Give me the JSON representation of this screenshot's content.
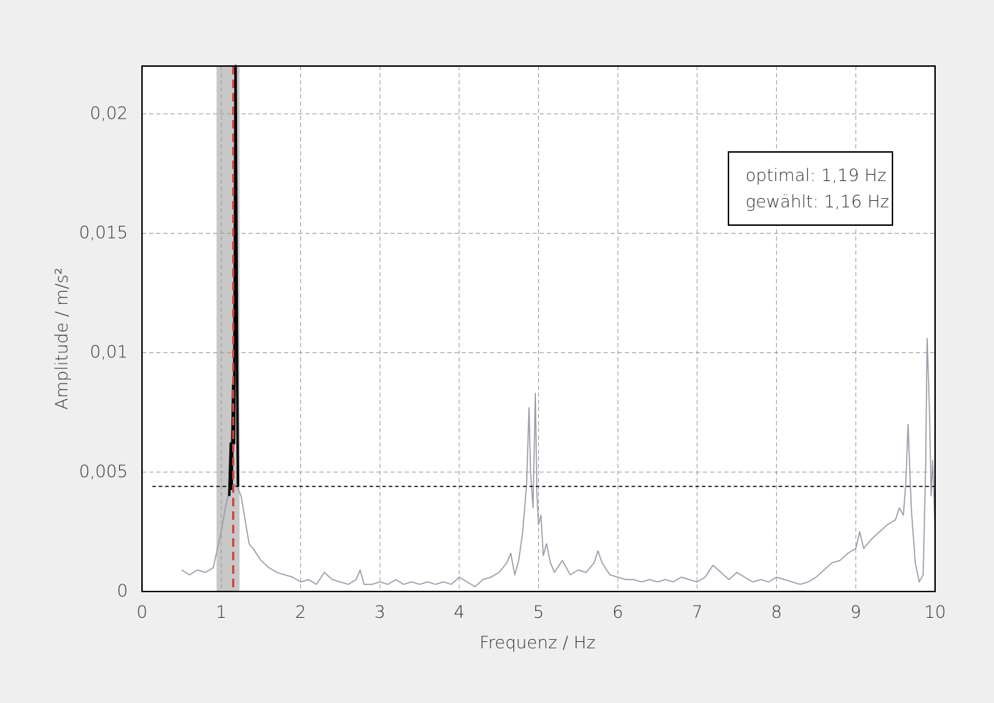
{
  "chart_data": {
    "type": "line",
    "xlabel": "Frequenz / Hz",
    "ylabel": "Amplitude / m/s²",
    "xlim": [
      0,
      10
    ],
    "ylim": [
      0,
      0.022
    ],
    "xticks": [
      0,
      1,
      2,
      3,
      4,
      5,
      6,
      7,
      8,
      9,
      10
    ],
    "yticks": [
      0,
      {
        "value": 0.005,
        "label": "0,005"
      },
      {
        "value": 0.01,
        "label": "0,01"
      },
      {
        "value": 0.015,
        "label": "0,015"
      },
      {
        "value": 0.02,
        "label": "0,02"
      }
    ],
    "grid": true,
    "band": {
      "x": [
        0.94,
        1.23
      ],
      "color": "#c8c8c8"
    },
    "series": [
      {
        "color": "#9a9ca8",
        "x": [
          0.5,
          0.6,
          0.7,
          0.8,
          0.9,
          0.95,
          1.0,
          1.05,
          1.1,
          1.15,
          1.2,
          1.25,
          1.3,
          1.35,
          1.4,
          1.5,
          1.6,
          1.7,
          1.8,
          1.9,
          2.0,
          2.1,
          2.2,
          2.3,
          2.4,
          2.5,
          2.6,
          2.7,
          2.75,
          2.8,
          2.9,
          3.0,
          3.1,
          3.2,
          3.3,
          3.4,
          3.5,
          3.6,
          3.7,
          3.8,
          3.9,
          4.0,
          4.1,
          4.2,
          4.3,
          4.4,
          4.5,
          4.6,
          4.65,
          4.7,
          4.75,
          4.8,
          4.85,
          4.88,
          4.9,
          4.93,
          4.96,
          4.98,
          5.0,
          5.03,
          5.06,
          5.1,
          5.15,
          5.2,
          5.3,
          5.4,
          5.5,
          5.6,
          5.7,
          5.75,
          5.8,
          5.9,
          6.0,
          6.1,
          6.2,
          6.3,
          6.4,
          6.5,
          6.6,
          6.7,
          6.8,
          6.9,
          7.0,
          7.1,
          7.2,
          7.3,
          7.4,
          7.5,
          7.6,
          7.7,
          7.8,
          7.9,
          8.0,
          8.1,
          8.2,
          8.3,
          8.4,
          8.5,
          8.6,
          8.7,
          8.8,
          8.9,
          9.0,
          9.05,
          9.1,
          9.2,
          9.3,
          9.4,
          9.5,
          9.55,
          9.6,
          9.63,
          9.66,
          9.7,
          9.75,
          9.8,
          9.85,
          9.88,
          9.9,
          9.93,
          9.95,
          9.97,
          10.0
        ],
        "values": [
          0.0009,
          0.0007,
          0.0009,
          0.0008,
          0.001,
          0.0018,
          0.0025,
          0.0035,
          0.0042,
          0.0045,
          0.0044,
          0.004,
          0.003,
          0.002,
          0.0018,
          0.0013,
          0.001,
          0.0008,
          0.0007,
          0.0006,
          0.0004,
          0.0005,
          0.0003,
          0.0008,
          0.0005,
          0.0004,
          0.0003,
          0.0005,
          0.0009,
          0.0003,
          0.0003,
          0.0004,
          0.0003,
          0.0005,
          0.0003,
          0.0004,
          0.0003,
          0.0004,
          0.0003,
          0.0004,
          0.0003,
          0.0006,
          0.0004,
          0.0002,
          0.0005,
          0.0006,
          0.0008,
          0.0012,
          0.0016,
          0.0007,
          0.0013,
          0.0025,
          0.0045,
          0.0077,
          0.005,
          0.0035,
          0.0083,
          0.004,
          0.0028,
          0.0032,
          0.0015,
          0.002,
          0.0012,
          0.0008,
          0.0013,
          0.0007,
          0.0009,
          0.0008,
          0.0012,
          0.0017,
          0.0012,
          0.0007,
          0.0006,
          0.0005,
          0.0005,
          0.0004,
          0.0005,
          0.0004,
          0.0005,
          0.0004,
          0.0006,
          0.0005,
          0.0004,
          0.0006,
          0.0011,
          0.0008,
          0.0005,
          0.0008,
          0.0006,
          0.0004,
          0.0005,
          0.0004,
          0.0006,
          0.0005,
          0.0004,
          0.0003,
          0.0004,
          0.0006,
          0.0009,
          0.0012,
          0.0013,
          0.0016,
          0.0018,
          0.0025,
          0.0018,
          0.0022,
          0.0025,
          0.0028,
          0.003,
          0.0035,
          0.0032,
          0.0045,
          0.007,
          0.0035,
          0.0012,
          0.0004,
          0.0007,
          0.005,
          0.0106,
          0.0075,
          0.004,
          0.0055,
          0.0025
        ]
      },
      {
        "color": "#000000",
        "x": [
          1.1,
          1.12,
          1.13,
          1.15,
          1.16,
          1.18,
          1.2,
          1.21
        ],
        "values": [
          0.004,
          0.0062,
          0.0043,
          0.0087,
          0.0062,
          0.022,
          0.0088,
          0.0044
        ]
      }
    ],
    "vline": {
      "x": 1.15,
      "color": "#d0453a"
    },
    "hline": {
      "y": 0.0044,
      "x": [
        0.13,
        10
      ],
      "color": "#000000"
    },
    "annotation": [
      "optimal:  1,19 Hz",
      "gewählt: 1,16 Hz"
    ]
  }
}
